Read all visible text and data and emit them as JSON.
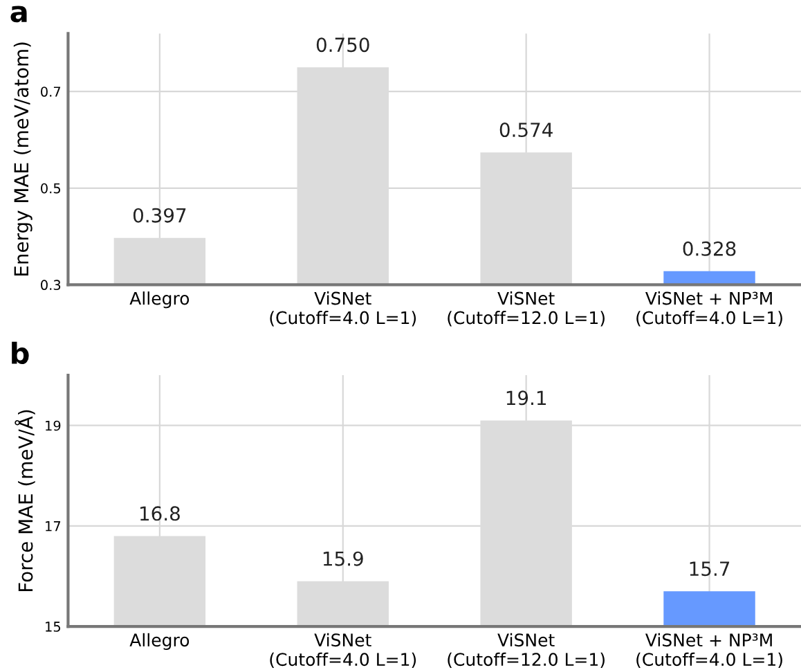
{
  "chart_data": [
    {
      "type": "bar",
      "title": "a",
      "ylabel": "Energy MAE (meV/atom)",
      "categories": [
        "Allegro",
        "ViSNet\n(Cutoff=4.0 L=1)",
        "ViSNet\n(Cutoff=12.0 L=1)",
        "ViSNet + NP³M\n(Cutoff=4.0 L=1)"
      ],
      "values": [
        0.397,
        0.75,
        0.574,
        0.328
      ],
      "value_labels": [
        "0.397",
        "0.750",
        "0.574",
        "0.328"
      ],
      "colors": [
        "#dcdcdc",
        "#dcdcdc",
        "#dcdcdc",
        "#6699ff"
      ],
      "ylim": [
        0.3,
        0.82
      ],
      "yticks": [
        0.3,
        0.5,
        0.7
      ],
      "grid": true
    },
    {
      "type": "bar",
      "title": "b",
      "ylabel": "Force MAE (meV/Å)",
      "categories": [
        "Allegro",
        "ViSNet\n(Cutoff=4.0 L=1)",
        "ViSNet\n(Cutoff=12.0 L=1)",
        "ViSNet + NP³M\n(Cutoff=4.0 L=1)"
      ],
      "values": [
        16.8,
        15.9,
        19.1,
        15.7
      ],
      "colors": [
        "#dcdcdc",
        "#dcdcdc",
        "#dcdcdc",
        "#6699ff"
      ],
      "ylim": [
        15,
        20
      ],
      "yticks": [
        15,
        17,
        19
      ],
      "grid": true,
      "data_labels": true
    }
  ]
}
